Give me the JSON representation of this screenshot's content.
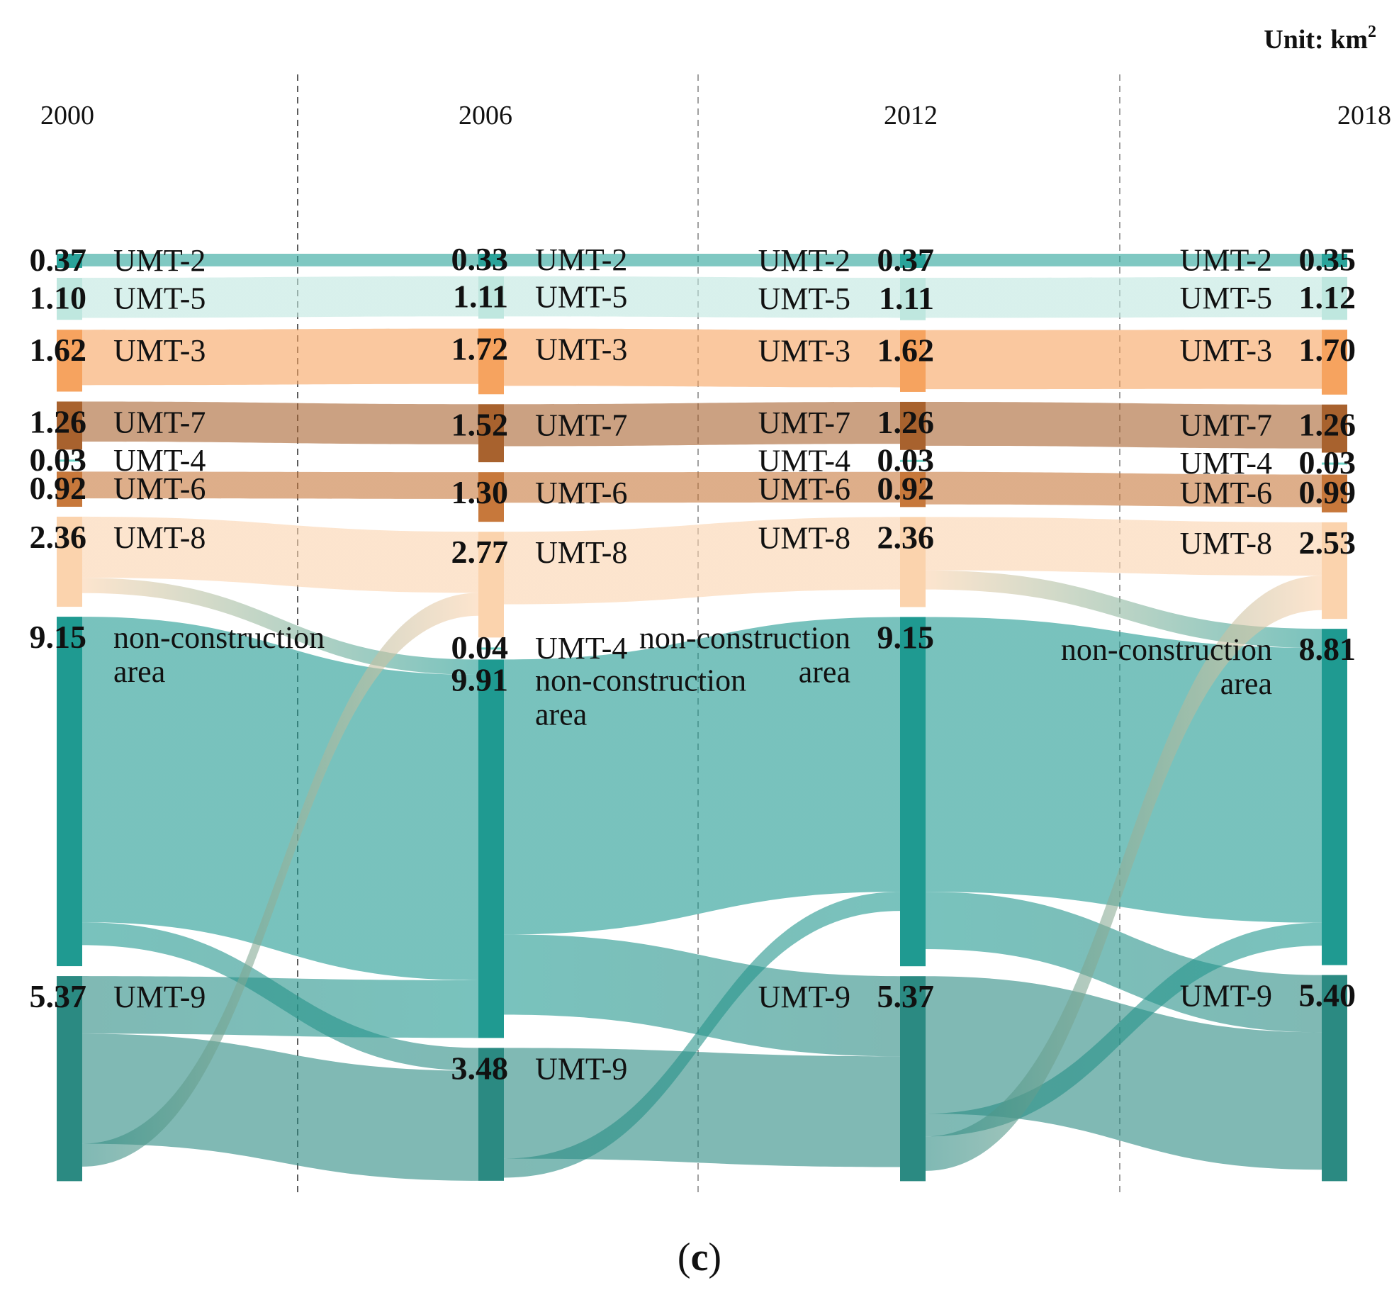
{
  "chart_data": {
    "type": "sankey",
    "unit_prefix": "Unit: km",
    "unit_sup": "2",
    "panel_label": {
      "open": "(",
      "letter": "c",
      "close": ")"
    },
    "years": [
      "2000",
      "2006",
      "2012",
      "2018"
    ],
    "colors": {
      "UMT-2": "#2aa39a",
      "UMT-5": "#bfe7df",
      "UMT-3": "#f6a35f",
      "UMT-7": "#a8622e",
      "UMT-4": "#6fd6c9",
      "UMT-6": "#c7783b",
      "UMT-8": "#fbd3ad",
      "non-construction area": "#1f9a91",
      "UMT-9": "#2b8a82"
    },
    "columns": [
      {
        "year": "2000",
        "label_side": "right",
        "nodes": [
          {
            "name": "UMT-2",
            "value": "0.37"
          },
          {
            "name": "UMT-5",
            "value": "1.10"
          },
          {
            "name": "UMT-3",
            "value": "1.62"
          },
          {
            "name": "UMT-7",
            "value": "1.26"
          },
          {
            "name": "UMT-4",
            "value": "0.03"
          },
          {
            "name": "UMT-6",
            "value": "0.92"
          },
          {
            "name": "UMT-8",
            "value": "2.36"
          },
          {
            "name": "non-construction area",
            "value": "9.15"
          },
          {
            "name": "UMT-9",
            "value": "5.37"
          }
        ]
      },
      {
        "year": "2006",
        "label_side": "right",
        "nodes": [
          {
            "name": "UMT-2",
            "value": "0.33"
          },
          {
            "name": "UMT-5",
            "value": "1.11"
          },
          {
            "name": "UMT-3",
            "value": "1.72"
          },
          {
            "name": "UMT-7",
            "value": "1.52"
          },
          {
            "name": "UMT-6",
            "value": "1.30"
          },
          {
            "name": "UMT-8",
            "value": "2.77"
          },
          {
            "name": "UMT-4",
            "value": "0.04"
          },
          {
            "name": "non-construction area",
            "value": "9.91"
          },
          {
            "name": "UMT-9",
            "value": "3.48"
          }
        ]
      },
      {
        "year": "2012",
        "label_side": "left",
        "nodes": [
          {
            "name": "UMT-2",
            "value": "0.37"
          },
          {
            "name": "UMT-5",
            "value": "1.11"
          },
          {
            "name": "UMT-3",
            "value": "1.62"
          },
          {
            "name": "UMT-7",
            "value": "1.26"
          },
          {
            "name": "UMT-4",
            "value": "0.03"
          },
          {
            "name": "UMT-6",
            "value": "0.92"
          },
          {
            "name": "UMT-8",
            "value": "2.36"
          },
          {
            "name": "non-construction area",
            "value": "9.15"
          },
          {
            "name": "UMT-9",
            "value": "5.37"
          }
        ]
      },
      {
        "year": "2018",
        "label_side": "left",
        "nodes": [
          {
            "name": "UMT-2",
            "value": "0.35"
          },
          {
            "name": "UMT-5",
            "value": "1.12"
          },
          {
            "name": "UMT-3",
            "value": "1.70"
          },
          {
            "name": "UMT-7",
            "value": "1.26"
          },
          {
            "name": "UMT-4",
            "value": "0.03"
          },
          {
            "name": "UMT-6",
            "value": "0.99"
          },
          {
            "name": "UMT-8",
            "value": "2.53"
          },
          {
            "name": "non-construction area",
            "value": "8.81"
          },
          {
            "name": "UMT-9",
            "value": "5.40"
          }
        ]
      }
    ],
    "flows": [
      {
        "from": [
          0,
          "UMT-2"
        ],
        "to": [
          1,
          "UMT-2"
        ],
        "value": 0.33
      },
      {
        "from": [
          0,
          "UMT-5"
        ],
        "to": [
          1,
          "UMT-5"
        ],
        "value": 1.05
      },
      {
        "from": [
          0,
          "UMT-3"
        ],
        "to": [
          1,
          "UMT-3"
        ],
        "value": 1.45
      },
      {
        "from": [
          0,
          "UMT-7"
        ],
        "to": [
          1,
          "UMT-7"
        ],
        "value": 1.05
      },
      {
        "from": [
          0,
          "UMT-6"
        ],
        "to": [
          1,
          "UMT-6"
        ],
        "value": 0.7
      },
      {
        "from": [
          0,
          "UMT-8"
        ],
        "to": [
          1,
          "UMT-8"
        ],
        "value": 1.6
      },
      {
        "from": [
          0,
          "UMT-8"
        ],
        "to": [
          1,
          "non-construction area"
        ],
        "value": 0.4
      },
      {
        "from": [
          0,
          "non-construction area"
        ],
        "to": [
          1,
          "non-construction area"
        ],
        "value": 8.0
      },
      {
        "from": [
          0,
          "non-construction area"
        ],
        "to": [
          1,
          "UMT-9"
        ],
        "value": 0.6
      },
      {
        "from": [
          0,
          "UMT-9"
        ],
        "to": [
          1,
          "non-construction area"
        ],
        "value": 1.51
      },
      {
        "from": [
          0,
          "UMT-9"
        ],
        "to": [
          1,
          "UMT-9"
        ],
        "value": 2.88
      },
      {
        "from": [
          0,
          "UMT-9"
        ],
        "to": [
          1,
          "UMT-8"
        ],
        "value": 0.6
      },
      {
        "from": [
          1,
          "UMT-2"
        ],
        "to": [
          2,
          "UMT-2"
        ],
        "value": 0.33
      },
      {
        "from": [
          1,
          "UMT-5"
        ],
        "to": [
          2,
          "UMT-5"
        ],
        "value": 1.05
      },
      {
        "from": [
          1,
          "UMT-3"
        ],
        "to": [
          2,
          "UMT-3"
        ],
        "value": 1.5
      },
      {
        "from": [
          1,
          "UMT-7"
        ],
        "to": [
          2,
          "UMT-7"
        ],
        "value": 1.1
      },
      {
        "from": [
          1,
          "UMT-6"
        ],
        "to": [
          2,
          "UMT-6"
        ],
        "value": 0.8
      },
      {
        "from": [
          1,
          "UMT-8"
        ],
        "to": [
          2,
          "UMT-8"
        ],
        "value": 1.9
      },
      {
        "from": [
          1,
          "non-construction area"
        ],
        "to": [
          2,
          "non-construction area"
        ],
        "value": 7.2
      },
      {
        "from": [
          1,
          "non-construction area"
        ],
        "to": [
          2,
          "UMT-9"
        ],
        "value": 2.1
      },
      {
        "from": [
          1,
          "UMT-9"
        ],
        "to": [
          2,
          "UMT-9"
        ],
        "value": 2.9
      },
      {
        "from": [
          1,
          "UMT-9"
        ],
        "to": [
          2,
          "non-construction area"
        ],
        "value": 0.5
      },
      {
        "from": [
          2,
          "UMT-2"
        ],
        "to": [
          3,
          "UMT-2"
        ],
        "value": 0.33
      },
      {
        "from": [
          2,
          "UMT-5"
        ],
        "to": [
          3,
          "UMT-5"
        ],
        "value": 1.05
      },
      {
        "from": [
          2,
          "UMT-3"
        ],
        "to": [
          3,
          "UMT-3"
        ],
        "value": 1.55
      },
      {
        "from": [
          2,
          "UMT-7"
        ],
        "to": [
          3,
          "UMT-7"
        ],
        "value": 1.15
      },
      {
        "from": [
          2,
          "UMT-6"
        ],
        "to": [
          3,
          "UMT-6"
        ],
        "value": 0.85
      },
      {
        "from": [
          2,
          "UMT-8"
        ],
        "to": [
          3,
          "UMT-8"
        ],
        "value": 1.4
      },
      {
        "from": [
          2,
          "UMT-8"
        ],
        "to": [
          3,
          "non-construction area"
        ],
        "value": 0.5
      },
      {
        "from": [
          2,
          "non-construction area"
        ],
        "to": [
          3,
          "non-construction area"
        ],
        "value": 7.2
      },
      {
        "from": [
          2,
          "non-construction area"
        ],
        "to": [
          3,
          "UMT-9"
        ],
        "value": 1.5
      },
      {
        "from": [
          2,
          "UMT-9"
        ],
        "to": [
          3,
          "UMT-9"
        ],
        "value": 3.6
      },
      {
        "from": [
          2,
          "UMT-9"
        ],
        "to": [
          3,
          "non-construction area"
        ],
        "value": 0.6
      },
      {
        "from": [
          2,
          "UMT-9"
        ],
        "to": [
          3,
          "UMT-8"
        ],
        "value": 0.9
      }
    ]
  }
}
